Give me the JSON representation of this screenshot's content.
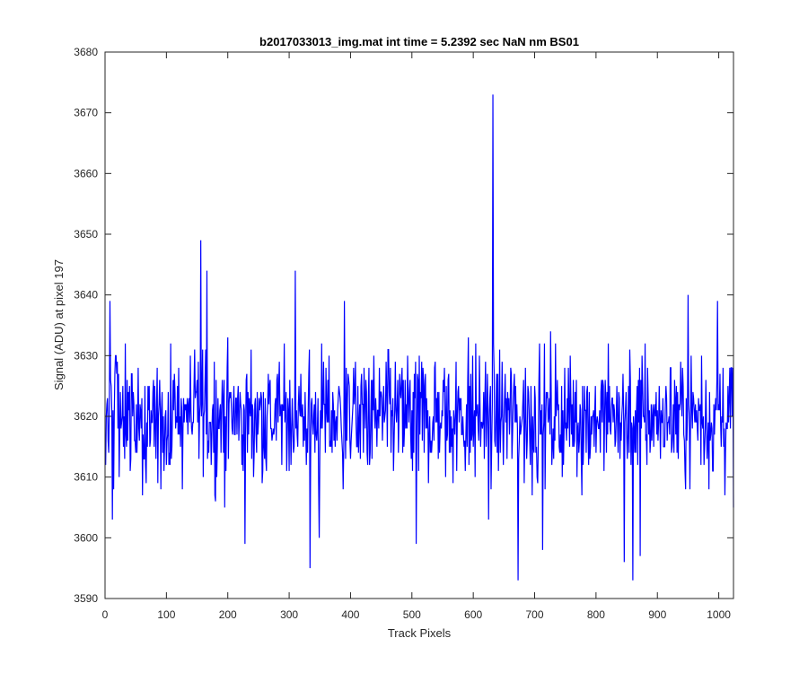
{
  "chart_data": {
    "type": "line",
    "title": "b2017033013_img.mat int time = 5.2392 sec  NaN nm BS01",
    "xlabel": "Track Pixels",
    "ylabel": "Signal (ADU) at pixel 197",
    "xlim": [
      0,
      1024
    ],
    "ylim": [
      3590,
      3680
    ],
    "xticks": [
      0,
      100,
      200,
      300,
      400,
      500,
      600,
      700,
      800,
      900,
      1000
    ],
    "yticks": [
      3590,
      3600,
      3610,
      3620,
      3630,
      3640,
      3650,
      3660,
      3670,
      3680
    ],
    "grid": false,
    "line_color": "#0000ff",
    "axis_color": "#262626",
    "series": [
      {
        "color": "#0000ff",
        "base_level": 3620,
        "x_range": [
          1,
          1024
        ],
        "y_range": [
          3593,
          3673
        ],
        "notable_points": [
          {
            "x": 1,
            "y": 3612
          },
          {
            "x": 8,
            "y": 3639
          },
          {
            "x": 12,
            "y": 3603
          },
          {
            "x": 156,
            "y": 3649
          },
          {
            "x": 166,
            "y": 3644
          },
          {
            "x": 228,
            "y": 3599
          },
          {
            "x": 310,
            "y": 3644
          },
          {
            "x": 334,
            "y": 3595
          },
          {
            "x": 349,
            "y": 3600
          },
          {
            "x": 390,
            "y": 3639
          },
          {
            "x": 507,
            "y": 3599
          },
          {
            "x": 625,
            "y": 3603
          },
          {
            "x": 632,
            "y": 3673
          },
          {
            "x": 673,
            "y": 3593
          },
          {
            "x": 713,
            "y": 3598
          },
          {
            "x": 846,
            "y": 3596
          },
          {
            "x": 860,
            "y": 3593
          },
          {
            "x": 872,
            "y": 3597
          },
          {
            "x": 950,
            "y": 3640
          },
          {
            "x": 998,
            "y": 3639
          },
          {
            "x": 1024,
            "y": 3605
          }
        ]
      }
    ]
  }
}
